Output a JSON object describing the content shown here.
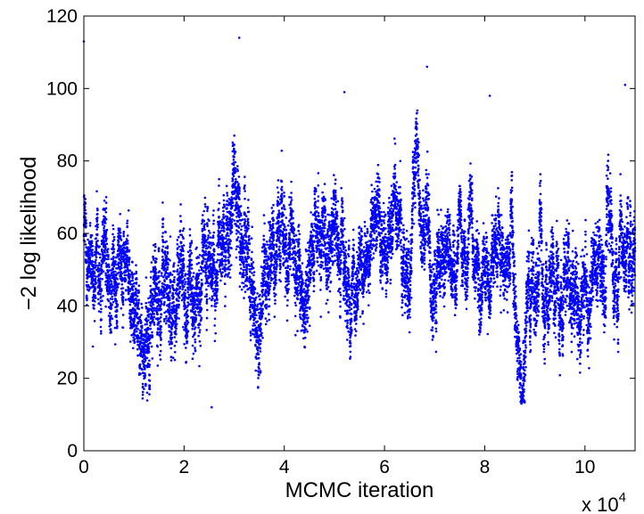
{
  "chart_data": {
    "type": "scatter",
    "xlabel": "MCMC iteration",
    "ylabel": "−2 log likelihood",
    "x_multiplier": "x 10",
    "x_multiplier_exponent": "4",
    "xlim": [
      0,
      110000
    ],
    "ylim": [
      0,
      120
    ],
    "xticks": [
      0,
      20000,
      40000,
      60000,
      80000,
      100000
    ],
    "xtick_labels": [
      "0",
      "2",
      "4",
      "6",
      "8",
      "10"
    ],
    "yticks": [
      0,
      20,
      40,
      60,
      80,
      100,
      120
    ],
    "ytick_labels": [
      "0",
      "20",
      "40",
      "60",
      "80",
      "100",
      "120"
    ],
    "grid": false,
    "marker_color": "#0000ff",
    "n_points_approx": 11000,
    "trace_level_by_10k_iterations": [
      [
        0,
        58
      ],
      [
        5,
        52
      ],
      [
        10,
        45
      ],
      [
        15,
        46
      ],
      [
        20,
        50
      ],
      [
        25,
        47
      ],
      [
        30,
        57
      ],
      [
        35,
        46
      ],
      [
        40,
        50
      ],
      [
        45,
        58
      ],
      [
        50,
        57
      ],
      [
        55,
        55
      ],
      [
        60,
        56
      ],
      [
        65,
        58
      ],
      [
        70,
        57
      ],
      [
        75,
        60
      ],
      [
        80,
        48
      ],
      [
        85,
        38
      ],
      [
        90,
        45
      ],
      [
        95,
        47
      ],
      [
        100,
        48
      ],
      [
        105,
        52
      ],
      [
        110,
        50
      ]
    ],
    "trace_spread_by_10k_iterations": [
      [
        0,
        11
      ],
      [
        10,
        12
      ],
      [
        20,
        13
      ],
      [
        30,
        13
      ],
      [
        40,
        12
      ],
      [
        50,
        11
      ],
      [
        60,
        11
      ],
      [
        70,
        11
      ],
      [
        80,
        10
      ],
      [
        90,
        12
      ],
      [
        100,
        12
      ],
      [
        110,
        12
      ]
    ],
    "notable_points": [
      {
        "x": 0,
        "y": 113
      },
      {
        "x": 31000,
        "y": 114
      },
      {
        "x": 68500,
        "y": 106
      },
      {
        "x": 108000,
        "y": 101
      },
      {
        "x": 52000,
        "y": 99
      },
      {
        "x": 81000,
        "y": 98
      },
      {
        "x": 25500,
        "y": 12
      }
    ]
  }
}
